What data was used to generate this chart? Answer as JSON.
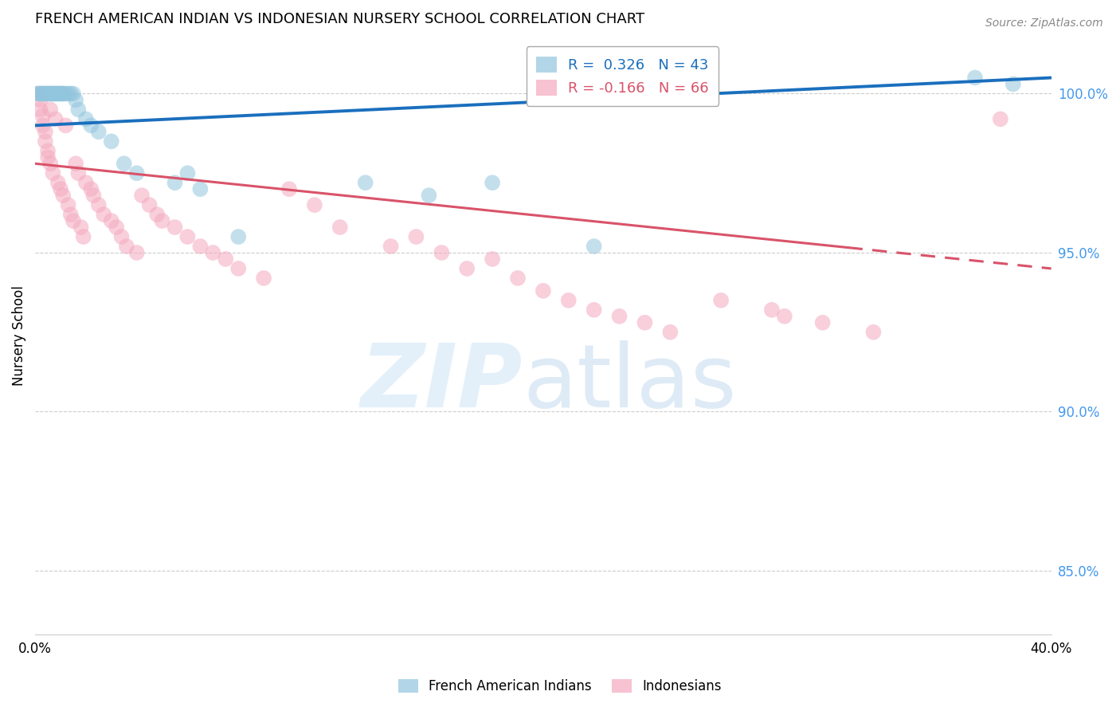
{
  "title": "FRENCH AMERICAN INDIAN VS INDONESIAN NURSERY SCHOOL CORRELATION CHART",
  "source": "Source: ZipAtlas.com",
  "ylabel": "Nursery School",
  "legend_entries": [
    {
      "label": "R =  0.326   N = 43",
      "color": "#92c5de"
    },
    {
      "label": "R = -0.166   N = 66",
      "color": "#f4a9be"
    }
  ],
  "legend_labels_bottom": [
    "French American Indians",
    "Indonesians"
  ],
  "blue_color": "#92c5de",
  "pink_color": "#f4a9be",
  "blue_line_color": "#1a6fbd",
  "pink_line_color": "#d9536a",
  "xmin": 0.0,
  "xmax": 0.4,
  "ymin": 83.0,
  "ymax": 101.8,
  "yticks": [
    85.0,
    90.0,
    95.0,
    100.0
  ],
  "blue_scatter_x": [
    0.001,
    0.002,
    0.002,
    0.003,
    0.003,
    0.004,
    0.004,
    0.005,
    0.005,
    0.006,
    0.006,
    0.007,
    0.007,
    0.008,
    0.008,
    0.009,
    0.009,
    0.01,
    0.01,
    0.011,
    0.011,
    0.012,
    0.013,
    0.014,
    0.015,
    0.016,
    0.017,
    0.02,
    0.022,
    0.025,
    0.03,
    0.035,
    0.04,
    0.055,
    0.06,
    0.065,
    0.08,
    0.13,
    0.155,
    0.18,
    0.22,
    0.37,
    0.385
  ],
  "blue_scatter_y": [
    100.0,
    100.0,
    100.0,
    100.0,
    100.0,
    100.0,
    100.0,
    100.0,
    100.0,
    100.0,
    100.0,
    100.0,
    100.0,
    100.0,
    100.0,
    100.0,
    100.0,
    100.0,
    100.0,
    100.0,
    100.0,
    100.0,
    100.0,
    100.0,
    100.0,
    99.8,
    99.5,
    99.2,
    99.0,
    98.8,
    98.5,
    97.8,
    97.5,
    97.2,
    97.5,
    97.0,
    95.5,
    97.2,
    96.8,
    97.2,
    95.2,
    100.5,
    100.3
  ],
  "pink_scatter_x": [
    0.001,
    0.002,
    0.002,
    0.003,
    0.003,
    0.004,
    0.004,
    0.005,
    0.005,
    0.006,
    0.006,
    0.007,
    0.008,
    0.009,
    0.01,
    0.011,
    0.012,
    0.013,
    0.014,
    0.015,
    0.016,
    0.017,
    0.018,
    0.019,
    0.02,
    0.022,
    0.023,
    0.025,
    0.027,
    0.03,
    0.032,
    0.034,
    0.036,
    0.04,
    0.042,
    0.045,
    0.048,
    0.05,
    0.055,
    0.06,
    0.065,
    0.07,
    0.075,
    0.08,
    0.09,
    0.1,
    0.11,
    0.12,
    0.14,
    0.15,
    0.16,
    0.17,
    0.18,
    0.19,
    0.2,
    0.21,
    0.22,
    0.23,
    0.24,
    0.25,
    0.27,
    0.29,
    0.295,
    0.31,
    0.33,
    0.38
  ],
  "pink_scatter_y": [
    100.0,
    99.8,
    99.5,
    99.3,
    99.0,
    98.8,
    98.5,
    98.2,
    98.0,
    99.5,
    97.8,
    97.5,
    99.2,
    97.2,
    97.0,
    96.8,
    99.0,
    96.5,
    96.2,
    96.0,
    97.8,
    97.5,
    95.8,
    95.5,
    97.2,
    97.0,
    96.8,
    96.5,
    96.2,
    96.0,
    95.8,
    95.5,
    95.2,
    95.0,
    96.8,
    96.5,
    96.2,
    96.0,
    95.8,
    95.5,
    95.2,
    95.0,
    94.8,
    94.5,
    94.2,
    97.0,
    96.5,
    95.8,
    95.2,
    95.5,
    95.0,
    94.5,
    94.8,
    94.2,
    93.8,
    93.5,
    93.2,
    93.0,
    92.8,
    92.5,
    93.5,
    93.2,
    93.0,
    92.8,
    92.5,
    99.2
  ],
  "blue_trend_x": [
    0.0,
    0.4
  ],
  "blue_trend_y": [
    99.0,
    100.5
  ],
  "pink_trend_x": [
    0.0,
    0.4
  ],
  "pink_trend_y": [
    97.8,
    94.5
  ]
}
